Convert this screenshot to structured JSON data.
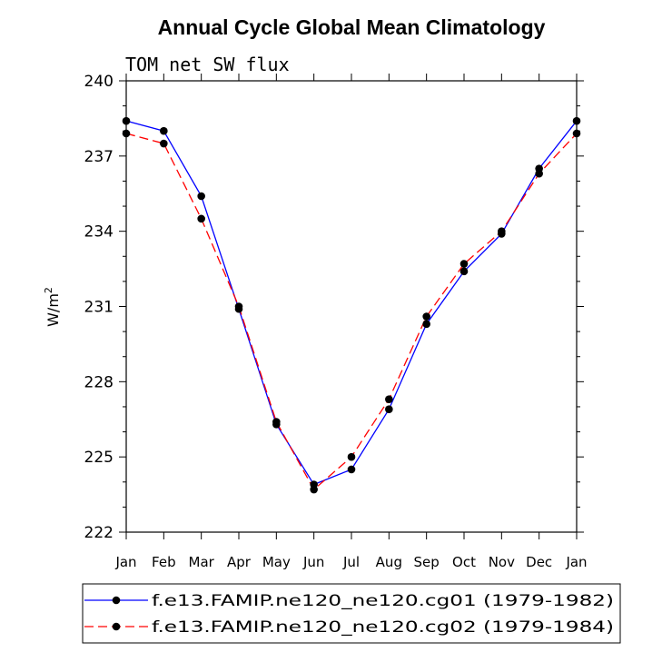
{
  "chart_data": {
    "type": "line",
    "title": "Annual Cycle Global Mean Climatology",
    "subtitle": "TOM net SW flux",
    "ylabel": "W/m",
    "ylabel_superscript": "2",
    "xlabel": "",
    "categories": [
      "Jan",
      "Feb",
      "Mar",
      "Apr",
      "May",
      "Jun",
      "Jul",
      "Aug",
      "Sep",
      "Oct",
      "Nov",
      "Dec",
      "Jan"
    ],
    "ylim": [
      222,
      240
    ],
    "yticks": [
      222,
      225,
      228,
      231,
      234,
      237,
      240
    ],
    "ytick_labels": [
      "222",
      "225",
      "228",
      "231",
      "234",
      "237",
      "240"
    ],
    "series": [
      {
        "name": "f.e13.FAMIP.ne120_ne120.cg01 (1979-1982)",
        "color": "#0000ff",
        "dash": "solid",
        "values": [
          238.4,
          238.0,
          235.4,
          230.9,
          226.3,
          223.9,
          224.5,
          226.9,
          230.3,
          232.4,
          233.9,
          236.5,
          238.4
        ]
      },
      {
        "name": "f.e13.FAMIP.ne120_ne120.cg02 (1979-1984)",
        "color": "#ff0000",
        "dash": "dashed",
        "values": [
          237.9,
          237.5,
          234.5,
          231.0,
          226.4,
          223.7,
          225.0,
          227.3,
          230.6,
          232.7,
          234.0,
          236.3,
          237.9
        ]
      }
    ],
    "legend_position": "bottom",
    "marker_color": "#000000"
  }
}
